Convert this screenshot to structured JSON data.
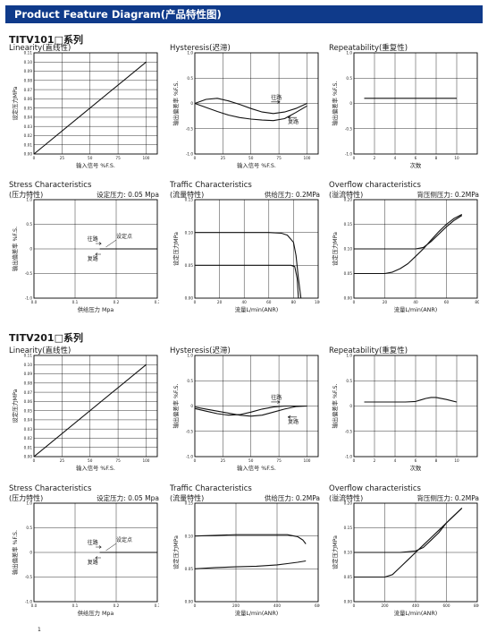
{
  "header": {
    "title": "Product Feature Diagram(产品特性图)"
  },
  "sections": [
    {
      "title": "TITV101□系列",
      "charts": [
        {
          "key": "lin1",
          "title": "Linearity(直线性)",
          "chart_data": {
            "type": "line",
            "xlabel": "输入信号 %F.S.",
            "ylabel": "设定压力MPa",
            "xlim": [
              0,
              110
            ],
            "ylim": [
              0,
              0.11
            ],
            "x_ticks": [
              "0",
              "25",
              "50",
              "75",
              "100"
            ],
            "y_ticks": [
              "0.00",
              "0.01",
              "0.02",
              "0.03",
              "0.04",
              "0.05",
              "0.06",
              "0.07",
              "0.08",
              "0.09",
              "0.10",
              "0.11"
            ],
            "series": [
              {
                "x": [
                  0,
                  100
                ],
                "y": [
                  0.0,
                  0.1
                ]
              }
            ]
          }
        },
        {
          "key": "hys1",
          "title": "Hysteresis(迟滞)",
          "chart_data": {
            "type": "line",
            "xlabel": "输入信号 %F.S.",
            "ylabel": "输出偏差率 %F.S.",
            "xlim": [
              0,
              110
            ],
            "ylim": [
              -1.0,
              1.0
            ],
            "x_ticks": [
              "0",
              "25",
              "50",
              "75",
              "100"
            ],
            "y_ticks": [
              "-1.0",
              "-0.5",
              "0",
              "0.5",
              "1.0"
            ],
            "annotations": [
              "往路",
              "复路"
            ],
            "series": [
              {
                "x": [
                  0,
                  10,
                  20,
                  30,
                  40,
                  50,
                  60,
                  70,
                  80,
                  90,
                  100
                ],
                "y": [
                  0.0,
                  0.08,
                  0.1,
                  0.05,
                  -0.02,
                  -0.1,
                  -0.17,
                  -0.2,
                  -0.17,
                  -0.1,
                  0.0
                ]
              },
              {
                "x": [
                  0,
                  10,
                  20,
                  30,
                  40,
                  50,
                  60,
                  70,
                  80,
                  90,
                  100
                ],
                "y": [
                  0.0,
                  -0.08,
                  -0.16,
                  -0.23,
                  -0.28,
                  -0.31,
                  -0.33,
                  -0.34,
                  -0.3,
                  -0.18,
                  -0.05
                ]
              }
            ]
          }
        },
        {
          "key": "rep1",
          "title": "Repeatability(重复性)",
          "chart_data": {
            "type": "line",
            "xlabel": "次数",
            "ylabel": "输出偏差率 %F.S.",
            "xlim": [
              0,
              12
            ],
            "ylim": [
              -1.0,
              1.0
            ],
            "x_ticks": [
              "0",
              "2",
              "4",
              "6",
              "8",
              "10"
            ],
            "y_ticks": [
              "-1.0",
              "-0.5",
              "0",
              "0.5",
              "1.0"
            ],
            "series": [
              {
                "x": [
                  1,
                  10
                ],
                "y": [
                  0.1,
                  0.1
                ]
              }
            ]
          }
        },
        {
          "key": "str1",
          "title": "Stress Characteristics",
          "subtitle": "(压力特性)",
          "subright": "设定压力: 0.05 Mpa",
          "chart_data": {
            "type": "line",
            "xlabel": "供给压力 Mpa",
            "ylabel": "输出偏差率 %F.S.",
            "xlim": [
              0,
              0.3
            ],
            "ylim": [
              -1.0,
              1.0
            ],
            "x_ticks": [
              "0.0",
              "0.1",
              "0.2",
              "0.3"
            ],
            "y_ticks": [
              "-1.0",
              "-0.5",
              "0",
              "0.5",
              "1.0"
            ],
            "annotations": [
              "往路",
              "设定点",
              "复路"
            ],
            "series": [
              {
                "x": [
                  0.16,
                  0.3
                ],
                "y": [
                  0.0,
                  0.0
                ]
              }
            ]
          }
        },
        {
          "key": "tra1",
          "title": "Traffic Characteristics",
          "subtitle": "(流量特性)",
          "subright": "供给压力: 0.2MPa",
          "chart_data": {
            "type": "line",
            "xlabel": "流量L/min(ANR)",
            "ylabel": "设定压力MPa",
            "xlim": [
              0,
              100
            ],
            "ylim": [
              0,
              0.15
            ],
            "x_ticks": [
              "0",
              "20",
              "40",
              "60",
              "80",
              "100"
            ],
            "y_ticks": [
              "0.00",
              "0.05",
              "0.10",
              "0.15"
            ],
            "series": [
              {
                "x": [
                  0,
                  20,
                  40,
                  60,
                  70,
                  75,
                  80,
                  82,
                  84,
                  86
                ],
                "y": [
                  0.1,
                  0.1,
                  0.1,
                  0.1,
                  0.099,
                  0.096,
                  0.085,
                  0.065,
                  0.03,
                  0.0
                ]
              },
              {
                "x": [
                  0,
                  20,
                  40,
                  60,
                  75,
                  78,
                  81,
                  83,
                  84
                ],
                "y": [
                  0.05,
                  0.05,
                  0.05,
                  0.05,
                  0.05,
                  0.05,
                  0.048,
                  0.03,
                  0.0
                ]
              }
            ]
          }
        },
        {
          "key": "ove1",
          "title": "Overflow characteristics",
          "subtitle": "(溢流特性)",
          "subright": "背压侧压力: 0.2MPa",
          "chart_data": {
            "type": "line",
            "xlabel": "流量L/min(ANR)",
            "ylabel": "设定压力MPa",
            "xlim": [
              0,
              80
            ],
            "ylim": [
              0,
              0.2
            ],
            "x_ticks": [
              "0",
              "20",
              "40",
              "60",
              "80"
            ],
            "y_ticks": [
              "0.00",
              "0.05",
              "0.10",
              "0.15",
              "0.20"
            ],
            "series": [
              {
                "x": [
                  0,
                  20,
                  30,
                  40,
                  45,
                  50,
                  55,
                  60,
                  65,
                  70
                ],
                "y": [
                  0.1,
                  0.1,
                  0.1,
                  0.1,
                  0.103,
                  0.115,
                  0.13,
                  0.145,
                  0.158,
                  0.168
                ]
              },
              {
                "x": [
                  0,
                  20,
                  25,
                  30,
                  35,
                  40,
                  45,
                  50,
                  55,
                  60,
                  65,
                  70
                ],
                "y": [
                  0.05,
                  0.05,
                  0.053,
                  0.06,
                  0.07,
                  0.085,
                  0.1,
                  0.118,
                  0.135,
                  0.15,
                  0.162,
                  0.17
                ]
              }
            ]
          }
        }
      ]
    },
    {
      "title": "TITV201□系列",
      "charts": [
        {
          "key": "lin2",
          "title": "Linearity(直线性)",
          "chart_data": {
            "type": "line",
            "xlabel": "输入信号 %F.S.",
            "ylabel": "设定压力MPa",
            "xlim": [
              0,
              110
            ],
            "ylim": [
              0,
              0.11
            ],
            "x_ticks": [
              "0",
              "25",
              "50",
              "75",
              "100"
            ],
            "y_ticks": [
              "0.00",
              "0.01",
              "0.02",
              "0.03",
              "0.04",
              "0.05",
              "0.06",
              "0.07",
              "0.08",
              "0.09",
              "0.10",
              "0.11"
            ],
            "series": [
              {
                "x": [
                  0,
                  100
                ],
                "y": [
                  0.0,
                  0.1
                ]
              }
            ]
          }
        },
        {
          "key": "hys2",
          "title": "Hysteresis(迟滞)",
          "chart_data": {
            "type": "line",
            "xlabel": "输入信号 %F.S.",
            "ylabel": "输出偏差率 %F.S.",
            "xlim": [
              0,
              110
            ],
            "ylim": [
              -1.0,
              1.0
            ],
            "x_ticks": [
              "0",
              "25",
              "50",
              "75",
              "100"
            ],
            "y_ticks": [
              "-1.0",
              "-0.5",
              "0",
              "0.5",
              "1.0"
            ],
            "annotations": [
              "往路",
              "复路"
            ],
            "series": [
              {
                "x": [
                  0,
                  10,
                  20,
                  30,
                  40,
                  50,
                  60,
                  70,
                  80,
                  90,
                  100
                ],
                "y": [
                  -0.02,
                  -0.06,
                  -0.1,
                  -0.14,
                  -0.18,
                  -0.2,
                  -0.18,
                  -0.12,
                  -0.06,
                  -0.01,
                  0.0
                ]
              },
              {
                "x": [
                  0,
                  10,
                  20,
                  30,
                  40,
                  50,
                  60,
                  70,
                  80,
                  90,
                  100
                ],
                "y": [
                  -0.05,
                  -0.1,
                  -0.15,
                  -0.18,
                  -0.17,
                  -0.12,
                  -0.06,
                  -0.02,
                  0.0,
                  0.0,
                  0.0
                ]
              }
            ]
          }
        },
        {
          "key": "rep2",
          "title": "Repeatability(重复性)",
          "chart_data": {
            "type": "line",
            "xlabel": "次数",
            "ylabel": "输出偏差率 %F.S.",
            "xlim": [
              0,
              12
            ],
            "ylim": [
              -1.0,
              1.0
            ],
            "x_ticks": [
              "0",
              "2",
              "4",
              "6",
              "8",
              "10"
            ],
            "y_ticks": [
              "-1.0",
              "-0.5",
              "0",
              "0.5",
              "1.0"
            ],
            "series": [
              {
                "x": [
                  1,
                  2,
                  3,
                  4,
                  5,
                  6,
                  6.5,
                  7,
                  7.5,
                  8,
                  9,
                  10
                ],
                "y": [
                  0.08,
                  0.08,
                  0.08,
                  0.08,
                  0.08,
                  0.09,
                  0.12,
                  0.15,
                  0.17,
                  0.17,
                  0.13,
                  0.08
                ]
              }
            ]
          }
        },
        {
          "key": "str2",
          "title": "Stress Characteristics",
          "subtitle": "(压力特性)",
          "subright": "设定压力: 0.05 Mpa",
          "chart_data": {
            "type": "line",
            "xlabel": "供给压力 Mpa",
            "ylabel": "输出偏差率 %F.S.",
            "xlim": [
              0,
              0.3
            ],
            "ylim": [
              -1.0,
              1.0
            ],
            "x_ticks": [
              "0.0",
              "0.1",
              "0.2",
              "0.3"
            ],
            "y_ticks": [
              "-1.0",
              "-0.5",
              "0",
              "0.5",
              "1.0"
            ],
            "annotations": [
              "往路",
              "设定点",
              "复路"
            ],
            "series": [
              {
                "x": [
                  0.16,
                  0.3
                ],
                "y": [
                  0.0,
                  0.0
                ]
              }
            ]
          }
        },
        {
          "key": "tra2",
          "title": "Traffic Characteristics",
          "subtitle": "(流量特性)",
          "subright": "供给压力: 0.2MPa",
          "chart_data": {
            "type": "line",
            "xlabel": "流量L/min(ANR)",
            "ylabel": "设定压力MPa",
            "xlim": [
              0,
              600
            ],
            "ylim": [
              0,
              0.15
            ],
            "x_ticks": [
              "0",
              "200",
              "400",
              "600"
            ],
            "y_ticks": [
              "0.00",
              "0.05",
              "0.10",
              "0.15"
            ],
            "series": [
              {
                "x": [
                  0,
                  100,
                  200,
                  300,
                  400,
                  450,
                  500,
                  525,
                  540
                ],
                "y": [
                  0.1,
                  0.101,
                  0.102,
                  0.102,
                  0.102,
                  0.102,
                  0.099,
                  0.094,
                  0.088
                ]
              },
              {
                "x": [
                  0,
                  100,
                  200,
                  300,
                  400,
                  450,
                  500,
                  540
                ],
                "y": [
                  0.05,
                  0.052,
                  0.053,
                  0.054,
                  0.056,
                  0.058,
                  0.06,
                  0.062
                ]
              }
            ]
          }
        },
        {
          "key": "ove2",
          "title": "Overflow characteristics",
          "subtitle": "(溢流特性)",
          "subright": "背压侧压力: 0.2MPa",
          "chart_data": {
            "type": "line",
            "xlabel": "流量L/min(ANR)",
            "ylabel": "设定压力MPa",
            "xlim": [
              0,
              800
            ],
            "ylim": [
              0,
              0.2
            ],
            "x_ticks": [
              "0",
              "200",
              "400",
              "600",
              "800"
            ],
            "y_ticks": [
              "0.00",
              "0.05",
              "0.10",
              "0.15",
              "0.20"
            ],
            "series": [
              {
                "x": [
                  0,
                  200,
                  300,
                  400,
                  450,
                  500,
                  550,
                  600,
                  650,
                  700
                ],
                "y": [
                  0.1,
                  0.1,
                  0.1,
                  0.103,
                  0.11,
                  0.125,
                  0.14,
                  0.16,
                  0.175,
                  0.19
                ]
              },
              {
                "x": [
                  0,
                  200,
                  250,
                  300,
                  350,
                  400,
                  450,
                  500,
                  550,
                  600,
                  650,
                  700
                ],
                "y": [
                  0.05,
                  0.05,
                  0.055,
                  0.07,
                  0.085,
                  0.1,
                  0.115,
                  0.13,
                  0.145,
                  0.16,
                  0.175,
                  0.19
                ]
              }
            ]
          }
        }
      ]
    }
  ],
  "footer": {
    "mark": "1"
  }
}
